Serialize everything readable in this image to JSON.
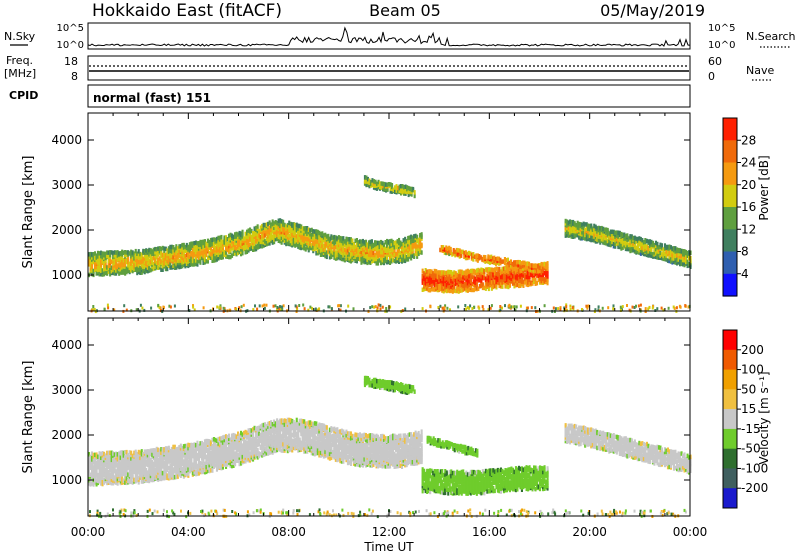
{
  "header": {
    "title": "Hokkaido East (fitACF)",
    "beam": "Beam 05",
    "date": "05/May/2019"
  },
  "panels": {
    "nsky_label": "N.Sky",
    "nsearch_label": "N.Search",
    "freq_label": "Freq.",
    "freq_unit": "[MHz]",
    "cpid_label": "CPID",
    "nave_label": "Nave",
    "mode_text": "normal (fast) 151",
    "noise_left_ticks": [
      "10^5",
      "10^0"
    ],
    "noise_right_ticks": [
      "10^5",
      "10^0"
    ],
    "freq_left_ticks": [
      "18",
      "8"
    ],
    "freq_right_ticks": [
      "60",
      "0"
    ]
  },
  "axes": {
    "ylabel": "Slant Range [km]",
    "xlabel": "Time UT",
    "x_ticks": [
      "00:00",
      "04:00",
      "08:00",
      "12:00",
      "16:00",
      "20:00",
      "00:00"
    ],
    "y_ticks": [
      "1000",
      "2000",
      "3000",
      "4000"
    ],
    "power_title": "Power [dB]",
    "velocity_title": "Velocity [m s⁻¹]",
    "power_ticks": [
      "4",
      "8",
      "12",
      "16",
      "20",
      "24",
      "28"
    ],
    "velocity_ticks": [
      "200",
      "100",
      "50",
      "15",
      "-15",
      "-50",
      "-100",
      "-200"
    ]
  },
  "colors": {
    "power_scale": [
      "#1010ff",
      "#2f5fb0",
      "#3f7f5f",
      "#5f9f3f",
      "#d2cc10",
      "#f59a10",
      "#f06a0a",
      "#ff2000"
    ],
    "velocity_scale": [
      "#1a1acd",
      "#3f5f5f",
      "#2f6f2f",
      "#6fcc2c",
      "#c8c8c8",
      "#f0c040",
      "#f0a000",
      "#f05a00",
      "#ff0000"
    ],
    "curve": "#000000"
  },
  "chart_data": [
    {
      "type": "heatmap",
      "title": "Power",
      "xlabel": "Time UT",
      "ylabel": "Slant Range [km]",
      "xlim": [
        0,
        24
      ],
      "ylim": [
        200,
        4600
      ],
      "colorbar": {
        "label": "Power [dB]",
        "ticks": [
          4,
          8,
          12,
          16,
          20,
          24,
          28
        ],
        "range": [
          0,
          32
        ]
      },
      "echo_bands": [
        {
          "t": [
            0.0,
            2.0,
            4.0,
            6.0,
            7.5,
            8.5,
            9.5,
            10.5,
            11.5,
            12.5,
            13.3
          ],
          "center_km": [
            1250,
            1300,
            1450,
            1700,
            2000,
            1850,
            1650,
            1550,
            1500,
            1550,
            1700
          ],
          "width_km": 500,
          "power_db": 22
        },
        {
          "t": [
            13.3,
            14.5,
            15.5,
            16.5,
            17.5,
            18.3
          ],
          "center_km": [
            900,
            850,
            900,
            950,
            1000,
            1050
          ],
          "width_km": 450,
          "power_db": 30
        },
        {
          "t": [
            14.0,
            15.0,
            16.0,
            17.0,
            18.0
          ],
          "center_km": [
            1600,
            1450,
            1350,
            1250,
            1150
          ],
          "width_km": 150,
          "power_db": 28
        },
        {
          "t": [
            19.0,
            20.0,
            21.0,
            22.0,
            23.0,
            24.0
          ],
          "center_km": [
            2050,
            1950,
            1800,
            1650,
            1500,
            1350
          ],
          "width_km": 350,
          "power_db": 20
        },
        {
          "t": [
            11.0,
            11.5,
            12.0,
            12.5,
            13.0
          ],
          "center_km": [
            3100,
            3000,
            2950,
            2900,
            2850
          ],
          "width_km": 180,
          "power_db": 20
        }
      ]
    },
    {
      "type": "heatmap",
      "title": "Velocity",
      "xlabel": "Time UT",
      "ylabel": "Slant Range [km]",
      "xlim": [
        0,
        24
      ],
      "ylim": [
        200,
        4600
      ],
      "colorbar": {
        "label": "Velocity [m s⁻¹]",
        "ticks": [
          200,
          100,
          50,
          15,
          -15,
          -50,
          -100,
          -200
        ],
        "range": [
          -250,
          250
        ]
      },
      "echo_bands": [
        {
          "t": [
            0.0,
            2.0,
            4.0,
            6.0,
            7.5,
            8.5,
            9.5,
            10.5,
            11.5,
            12.5,
            13.3
          ],
          "center_km": [
            1250,
            1300,
            1450,
            1700,
            2000,
            2000,
            1850,
            1700,
            1650,
            1650,
            1750
          ],
          "width_km": 700,
          "velocity": 0
        },
        {
          "t": [
            13.3,
            14.5,
            15.5,
            16.5,
            17.5,
            18.3
          ],
          "center_km": [
            1000,
            950,
            950,
            1000,
            1050,
            1050
          ],
          "width_km": 500,
          "velocity": 35
        },
        {
          "t": [
            13.5,
            14.5,
            15.5
          ],
          "center_km": [
            1900,
            1750,
            1600
          ],
          "width_km": 150,
          "velocity": 35
        },
        {
          "t": [
            19.0,
            20.0,
            21.0,
            22.0,
            23.0,
            24.0
          ],
          "center_km": [
            2050,
            1950,
            1800,
            1650,
            1500,
            1350
          ],
          "width_km": 400,
          "velocity": 0
        },
        {
          "t": [
            11.0,
            12.0,
            13.0
          ],
          "center_km": [
            3200,
            3100,
            3000
          ],
          "width_km": 180,
          "velocity": 35
        }
      ]
    }
  ]
}
